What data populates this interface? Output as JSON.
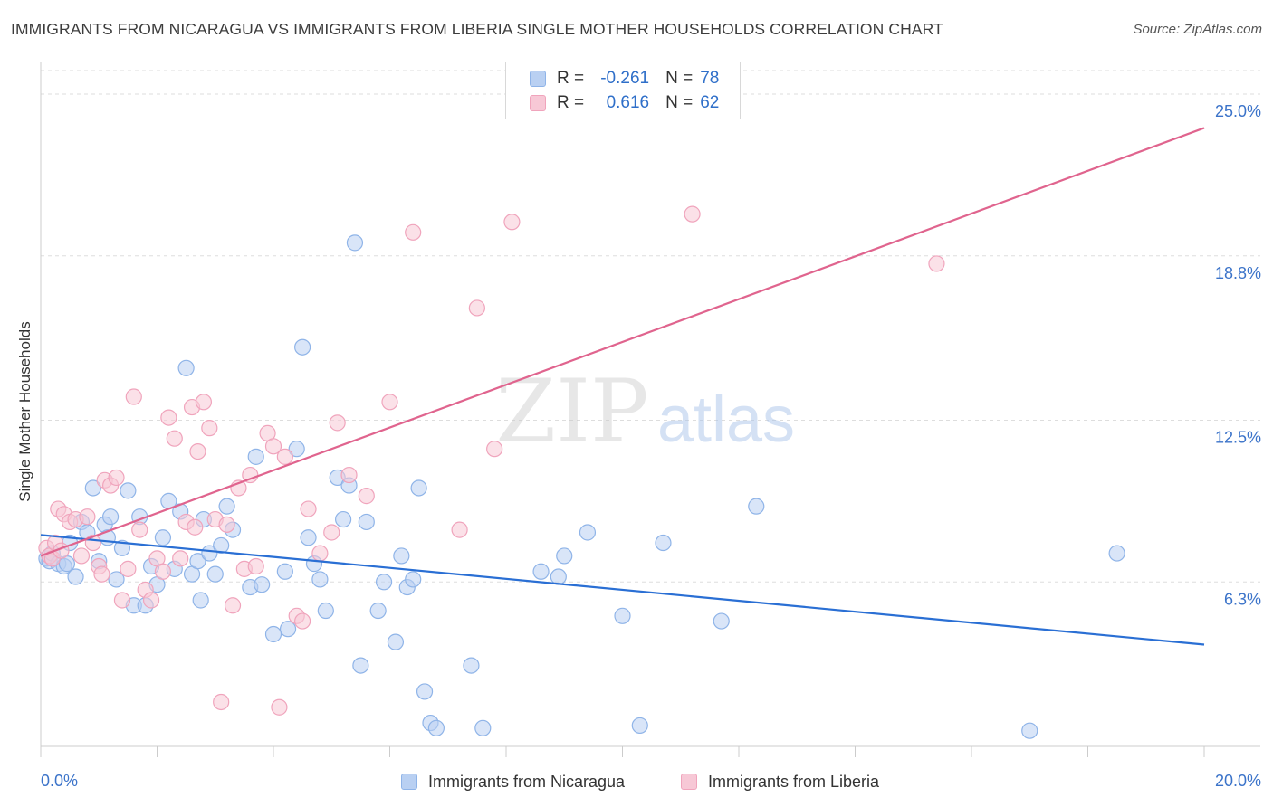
{
  "header": {
    "title": "IMMIGRANTS FROM NICARAGUA VS IMMIGRANTS FROM LIBERIA SINGLE MOTHER HOUSEHOLDS CORRELATION CHART",
    "source": "Source: ZipAtlas.com"
  },
  "watermark": {
    "zip": "ZIP",
    "atlas": "atlas"
  },
  "legend": {
    "rows": [
      {
        "r_label": "R =",
        "r_value": "-0.261",
        "n_label": "N =",
        "n_value": "78"
      },
      {
        "r_label": "R =",
        "r_value": "0.616",
        "n_label": "N =",
        "n_value": "62"
      }
    ]
  },
  "chart_data": {
    "type": "scatter",
    "title": "IMMIGRANTS FROM NICARAGUA VS IMMIGRANTS FROM LIBERIA SINGLE MOTHER HOUSEHOLDS CORRELATION CHART",
    "xlabel": "",
    "ylabel": "Single Mother Households",
    "xlim": [
      0,
      20
    ],
    "ylim": [
      0,
      25.9
    ],
    "x_tick_labels": [
      "0.0%",
      "20.0%"
    ],
    "y_ticks": [
      6.3,
      12.5,
      18.8,
      25.0
    ],
    "y_tick_labels": [
      "6.3%",
      "12.5%",
      "18.8%",
      "25.0%"
    ],
    "grid": true,
    "legend_position": "top-center",
    "series": [
      {
        "name": "Immigrants from Nicaragua",
        "color": "#8fb4e8",
        "fill": "#b9d0f2",
        "trend_color": "#2a6fd4",
        "trend": {
          "x0": 0,
          "y0": 8.1,
          "x1": 20,
          "y1": 3.9
        },
        "points": [
          [
            0.1,
            7.2
          ],
          [
            0.15,
            7.1
          ],
          [
            0.2,
            7.4
          ],
          [
            0.3,
            7.0
          ],
          [
            0.4,
            6.9
          ],
          [
            0.5,
            7.8
          ],
          [
            0.6,
            6.5
          ],
          [
            0.7,
            8.6
          ],
          [
            0.8,
            8.2
          ],
          [
            0.9,
            9.9
          ],
          [
            1.0,
            7.1
          ],
          [
            1.1,
            8.5
          ],
          [
            1.2,
            8.8
          ],
          [
            1.3,
            6.4
          ],
          [
            1.4,
            7.6
          ],
          [
            1.5,
            9.8
          ],
          [
            1.6,
            5.4
          ],
          [
            1.7,
            8.8
          ],
          [
            1.8,
            5.4
          ],
          [
            1.9,
            6.9
          ],
          [
            2.0,
            6.2
          ],
          [
            2.1,
            8.0
          ],
          [
            2.2,
            9.4
          ],
          [
            2.3,
            6.8
          ],
          [
            2.4,
            9.0
          ],
          [
            2.5,
            14.5
          ],
          [
            2.6,
            6.6
          ],
          [
            2.7,
            7.1
          ],
          [
            2.8,
            8.7
          ],
          [
            2.9,
            7.4
          ],
          [
            3.0,
            6.6
          ],
          [
            3.1,
            7.7
          ],
          [
            3.2,
            9.2
          ],
          [
            3.6,
            6.1
          ],
          [
            3.7,
            11.1
          ],
          [
            3.8,
            6.2
          ],
          [
            4.0,
            4.3
          ],
          [
            4.2,
            6.7
          ],
          [
            4.4,
            11.4
          ],
          [
            4.5,
            15.3
          ],
          [
            4.6,
            8.0
          ],
          [
            4.7,
            7.0
          ],
          [
            4.8,
            6.4
          ],
          [
            4.9,
            5.2
          ],
          [
            5.1,
            10.3
          ],
          [
            5.2,
            8.7
          ],
          [
            5.3,
            10.0
          ],
          [
            5.4,
            19.3
          ],
          [
            5.5,
            3.1
          ],
          [
            5.6,
            8.6
          ],
          [
            5.9,
            6.3
          ],
          [
            6.1,
            4.0
          ],
          [
            6.2,
            7.3
          ],
          [
            6.3,
            6.1
          ],
          [
            6.4,
            6.4
          ],
          [
            6.5,
            9.9
          ],
          [
            6.6,
            2.1
          ],
          [
            6.7,
            0.9
          ],
          [
            6.8,
            0.7
          ],
          [
            7.4,
            3.1
          ],
          [
            7.6,
            0.7
          ],
          [
            8.6,
            6.7
          ],
          [
            8.9,
            6.5
          ],
          [
            9.0,
            7.3
          ],
          [
            9.4,
            8.2
          ],
          [
            10.0,
            5.0
          ],
          [
            10.3,
            0.8
          ],
          [
            10.7,
            7.8
          ],
          [
            11.7,
            4.8
          ],
          [
            12.3,
            9.2
          ],
          [
            17.0,
            0.6
          ],
          [
            18.5,
            7.4
          ],
          [
            5.8,
            5.2
          ],
          [
            3.3,
            8.3
          ],
          [
            0.45,
            7.0
          ],
          [
            1.15,
            8.0
          ],
          [
            2.75,
            5.6
          ],
          [
            4.25,
            4.5
          ]
        ]
      },
      {
        "name": "Immigrants from Liberia",
        "color": "#f0a4bc",
        "fill": "#f7c8d6",
        "trend_color": "#e0648e",
        "trend": {
          "x0": 0,
          "y0": 7.3,
          "x1": 20,
          "y1": 23.7
        },
        "points": [
          [
            0.1,
            7.6
          ],
          [
            0.15,
            7.3
          ],
          [
            0.2,
            7.2
          ],
          [
            0.25,
            7.8
          ],
          [
            0.3,
            9.1
          ],
          [
            0.4,
            8.9
          ],
          [
            0.5,
            8.6
          ],
          [
            0.6,
            8.7
          ],
          [
            0.7,
            7.3
          ],
          [
            0.8,
            8.8
          ],
          [
            0.9,
            7.8
          ],
          [
            1.0,
            6.9
          ],
          [
            1.1,
            10.2
          ],
          [
            1.2,
            10.0
          ],
          [
            1.3,
            10.3
          ],
          [
            1.4,
            5.6
          ],
          [
            1.5,
            6.8
          ],
          [
            1.6,
            13.4
          ],
          [
            1.7,
            8.3
          ],
          [
            1.8,
            6.0
          ],
          [
            1.9,
            5.6
          ],
          [
            2.0,
            7.2
          ],
          [
            2.1,
            6.7
          ],
          [
            2.2,
            12.6
          ],
          [
            2.3,
            11.8
          ],
          [
            2.4,
            7.2
          ],
          [
            2.5,
            8.6
          ],
          [
            2.6,
            13.0
          ],
          [
            2.7,
            11.3
          ],
          [
            2.8,
            13.2
          ],
          [
            2.9,
            12.2
          ],
          [
            3.0,
            8.7
          ],
          [
            3.1,
            1.7
          ],
          [
            3.2,
            8.5
          ],
          [
            3.3,
            5.4
          ],
          [
            3.4,
            9.9
          ],
          [
            3.5,
            6.8
          ],
          [
            3.6,
            10.4
          ],
          [
            3.7,
            6.9
          ],
          [
            3.9,
            12.0
          ],
          [
            4.0,
            11.5
          ],
          [
            4.1,
            1.5
          ],
          [
            4.2,
            11.1
          ],
          [
            4.4,
            5.0
          ],
          [
            4.6,
            9.1
          ],
          [
            4.8,
            7.4
          ],
          [
            5.0,
            8.2
          ],
          [
            5.1,
            12.4
          ],
          [
            5.3,
            10.4
          ],
          [
            6.0,
            13.2
          ],
          [
            6.4,
            19.7
          ],
          [
            7.2,
            8.3
          ],
          [
            7.5,
            16.8
          ],
          [
            7.8,
            11.4
          ],
          [
            8.1,
            20.1
          ],
          [
            11.2,
            20.4
          ],
          [
            15.4,
            18.5
          ],
          [
            0.35,
            7.5
          ],
          [
            1.05,
            6.6
          ],
          [
            2.65,
            8.4
          ],
          [
            4.5,
            4.8
          ],
          [
            5.6,
            9.6
          ]
        ]
      }
    ]
  },
  "bottom_legend": [
    {
      "label": "Immigrants from Nicaragua"
    },
    {
      "label": "Immigrants from Liberia"
    }
  ]
}
